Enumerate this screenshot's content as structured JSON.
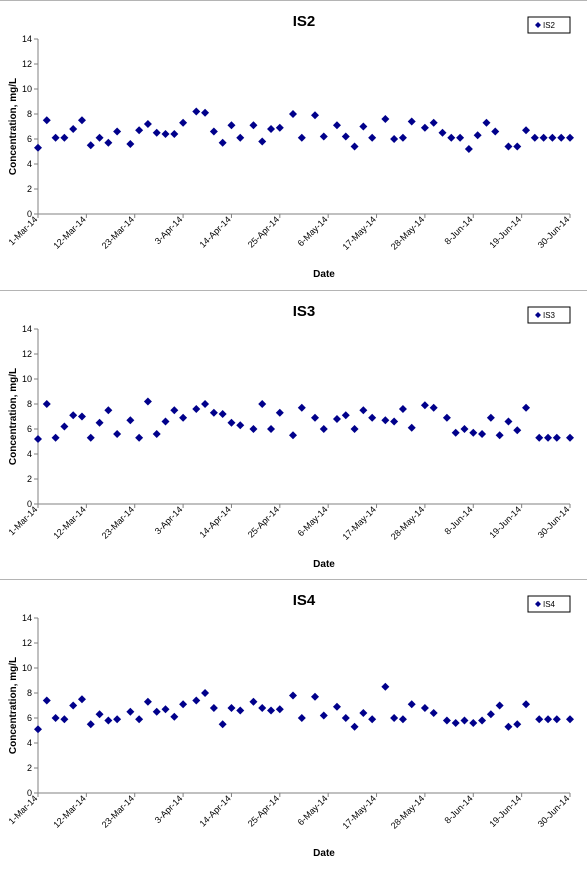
{
  "chart_data": [
    {
      "type": "scatter",
      "title": "IS2",
      "xlabel": "Date",
      "ylabel": "Concentration, mg/L",
      "ylim": [
        0,
        14
      ],
      "yticks": [
        0,
        2,
        4,
        6,
        8,
        10,
        12,
        14
      ],
      "xlim": [
        "2014-03-01",
        "2014-06-30"
      ],
      "xtick_labels": [
        "1-Mar-14",
        "12-Mar-14",
        "23-Mar-14",
        "3-Apr-14",
        "14-Apr-14",
        "25-Apr-14",
        "6-May-14",
        "17-May-14",
        "28-May-14",
        "8-Jun-14",
        "19-Jun-14",
        "30-Jun-14"
      ],
      "xtick_dates": [
        "2014-03-01",
        "2014-03-12",
        "2014-03-23",
        "2014-04-03",
        "2014-04-14",
        "2014-04-25",
        "2014-05-06",
        "2014-05-17",
        "2014-05-28",
        "2014-06-08",
        "2014-06-19",
        "2014-06-30"
      ],
      "legend_position": "top-right",
      "grid": false,
      "series": [
        {
          "name": "IS2",
          "color": "#00008b",
          "marker": "diamond",
          "x": [
            "2014-03-01",
            "2014-03-03",
            "2014-03-05",
            "2014-03-07",
            "2014-03-09",
            "2014-03-11",
            "2014-03-13",
            "2014-03-15",
            "2014-03-17",
            "2014-03-19",
            "2014-03-22",
            "2014-03-24",
            "2014-03-26",
            "2014-03-28",
            "2014-03-30",
            "2014-04-01",
            "2014-04-03",
            "2014-04-06",
            "2014-04-08",
            "2014-04-10",
            "2014-04-12",
            "2014-04-14",
            "2014-04-16",
            "2014-04-19",
            "2014-04-21",
            "2014-04-23",
            "2014-04-25",
            "2014-04-28",
            "2014-04-30",
            "2014-05-03",
            "2014-05-05",
            "2014-05-08",
            "2014-05-10",
            "2014-05-12",
            "2014-05-14",
            "2014-05-16",
            "2014-05-19",
            "2014-05-21",
            "2014-05-23",
            "2014-05-25",
            "2014-05-28",
            "2014-05-30",
            "2014-06-01",
            "2014-06-03",
            "2014-06-05",
            "2014-06-07",
            "2014-06-09",
            "2014-06-11",
            "2014-06-13",
            "2014-06-16",
            "2014-06-18",
            "2014-06-20",
            "2014-06-22",
            "2014-06-24",
            "2014-06-26",
            "2014-06-28",
            "2014-06-30"
          ],
          "y": [
            5.3,
            7.5,
            6.1,
            6.1,
            6.8,
            7.5,
            5.5,
            6.1,
            5.7,
            6.6,
            5.6,
            6.7,
            7.2,
            6.5,
            6.4,
            6.4,
            7.3,
            8.2,
            8.1,
            6.6,
            5.7,
            7.1,
            6.1,
            7.1,
            5.8,
            6.8,
            6.9,
            8.0,
            6.1,
            7.9,
            6.2,
            7.1,
            6.2,
            5.4,
            7.0,
            6.1,
            7.6,
            6.0,
            6.1,
            7.4,
            6.9,
            7.3,
            6.5,
            6.1,
            6.1,
            5.2,
            6.3,
            7.3,
            6.6,
            5.4,
            5.4,
            6.7,
            6.1,
            6.1,
            6.1,
            6.1,
            6.1
          ]
        }
      ]
    },
    {
      "type": "scatter",
      "title": "IS3",
      "xlabel": "Date",
      "ylabel": "Concentration, mg/L",
      "ylim": [
        0,
        14
      ],
      "yticks": [
        0,
        2,
        4,
        6,
        8,
        10,
        12,
        14
      ],
      "xlim": [
        "2014-03-01",
        "2014-06-30"
      ],
      "xtick_labels": [
        "1-Mar-14",
        "12-Mar-14",
        "23-Mar-14",
        "3-Apr-14",
        "14-Apr-14",
        "25-Apr-14",
        "6-May-14",
        "17-May-14",
        "28-May-14",
        "8-Jun-14",
        "19-Jun-14",
        "30-Jun-14"
      ],
      "xtick_dates": [
        "2014-03-01",
        "2014-03-12",
        "2014-03-23",
        "2014-04-03",
        "2014-04-14",
        "2014-04-25",
        "2014-05-06",
        "2014-05-17",
        "2014-05-28",
        "2014-06-08",
        "2014-06-19",
        "2014-06-30"
      ],
      "legend_position": "top-right",
      "grid": false,
      "series": [
        {
          "name": "IS3",
          "color": "#00008b",
          "marker": "diamond",
          "x": [
            "2014-03-01",
            "2014-03-03",
            "2014-03-05",
            "2014-03-07",
            "2014-03-09",
            "2014-03-11",
            "2014-03-13",
            "2014-03-15",
            "2014-03-17",
            "2014-03-19",
            "2014-03-22",
            "2014-03-24",
            "2014-03-26",
            "2014-03-28",
            "2014-03-30",
            "2014-04-01",
            "2014-04-03",
            "2014-04-06",
            "2014-04-08",
            "2014-04-10",
            "2014-04-12",
            "2014-04-14",
            "2014-04-16",
            "2014-04-19",
            "2014-04-21",
            "2014-04-23",
            "2014-04-25",
            "2014-04-28",
            "2014-04-30",
            "2014-05-03",
            "2014-05-05",
            "2014-05-08",
            "2014-05-10",
            "2014-05-12",
            "2014-05-14",
            "2014-05-16",
            "2014-05-19",
            "2014-05-21",
            "2014-05-23",
            "2014-05-25",
            "2014-05-28",
            "2014-05-30",
            "2014-06-02",
            "2014-06-04",
            "2014-06-06",
            "2014-06-08",
            "2014-06-10",
            "2014-06-12",
            "2014-06-14",
            "2014-06-16",
            "2014-06-18",
            "2014-06-20",
            "2014-06-23",
            "2014-06-25",
            "2014-06-27",
            "2014-06-30"
          ],
          "y": [
            5.2,
            8.0,
            5.3,
            6.2,
            7.1,
            7.0,
            5.3,
            6.5,
            7.5,
            5.6,
            6.7,
            5.3,
            8.2,
            5.6,
            6.6,
            7.5,
            6.9,
            7.6,
            8.0,
            7.3,
            7.2,
            6.5,
            6.3,
            6.0,
            8.0,
            6.0,
            7.3,
            5.5,
            7.7,
            6.9,
            6.0,
            6.8,
            7.1,
            6.0,
            7.5,
            6.9,
            6.7,
            6.6,
            7.6,
            6.1,
            7.9,
            7.7,
            6.9,
            5.7,
            6.0,
            5.7,
            5.6,
            6.9,
            5.5,
            6.6,
            5.9,
            7.7,
            5.3,
            5.3,
            5.3,
            5.3
          ]
        }
      ]
    },
    {
      "type": "scatter",
      "title": "IS4",
      "xlabel": "Date",
      "ylabel": "Concentration, mg/L",
      "ylim": [
        0,
        14
      ],
      "yticks": [
        0,
        2,
        4,
        6,
        8,
        10,
        12,
        14
      ],
      "xlim": [
        "2014-03-01",
        "2014-06-30"
      ],
      "xtick_labels": [
        "1-Mar-14",
        "12-Mar-14",
        "23-Mar-14",
        "3-Apr-14",
        "14-Apr-14",
        "25-Apr-14",
        "6-May-14",
        "17-May-14",
        "28-May-14",
        "8-Jun-14",
        "19-Jun-14",
        "30-Jun-14"
      ],
      "xtick_dates": [
        "2014-03-01",
        "2014-03-12",
        "2014-03-23",
        "2014-04-03",
        "2014-04-14",
        "2014-04-25",
        "2014-05-06",
        "2014-05-17",
        "2014-05-28",
        "2014-06-08",
        "2014-06-19",
        "2014-06-30"
      ],
      "legend_position": "top-right",
      "grid": false,
      "series": [
        {
          "name": "IS4",
          "color": "#00008b",
          "marker": "diamond",
          "x": [
            "2014-03-01",
            "2014-03-03",
            "2014-03-05",
            "2014-03-07",
            "2014-03-09",
            "2014-03-11",
            "2014-03-13",
            "2014-03-15",
            "2014-03-17",
            "2014-03-19",
            "2014-03-22",
            "2014-03-24",
            "2014-03-26",
            "2014-03-28",
            "2014-03-30",
            "2014-04-01",
            "2014-04-03",
            "2014-04-06",
            "2014-04-08",
            "2014-04-10",
            "2014-04-12",
            "2014-04-14",
            "2014-04-16",
            "2014-04-19",
            "2014-04-21",
            "2014-04-23",
            "2014-04-25",
            "2014-04-28",
            "2014-04-30",
            "2014-05-03",
            "2014-05-05",
            "2014-05-08",
            "2014-05-10",
            "2014-05-12",
            "2014-05-14",
            "2014-05-16",
            "2014-05-19",
            "2014-05-21",
            "2014-05-23",
            "2014-05-25",
            "2014-05-28",
            "2014-05-30",
            "2014-06-02",
            "2014-06-04",
            "2014-06-06",
            "2014-06-08",
            "2014-06-10",
            "2014-06-12",
            "2014-06-14",
            "2014-06-16",
            "2014-06-18",
            "2014-06-20",
            "2014-06-23",
            "2014-06-25",
            "2014-06-27",
            "2014-06-30"
          ],
          "y": [
            5.1,
            7.4,
            6.0,
            5.9,
            7.0,
            7.5,
            5.5,
            6.3,
            5.8,
            5.9,
            6.5,
            5.9,
            7.3,
            6.5,
            6.7,
            6.1,
            7.1,
            7.4,
            8.0,
            6.8,
            5.5,
            6.8,
            6.6,
            7.3,
            6.8,
            6.6,
            6.7,
            7.8,
            6.0,
            7.7,
            6.2,
            6.9,
            6.0,
            5.3,
            6.4,
            5.9,
            8.5,
            6.0,
            5.9,
            7.1,
            6.8,
            6.4,
            5.8,
            5.6,
            5.8,
            5.6,
            5.8,
            6.3,
            7.0,
            5.3,
            5.5,
            7.1,
            5.9,
            5.9,
            5.9,
            5.9
          ]
        }
      ]
    }
  ]
}
